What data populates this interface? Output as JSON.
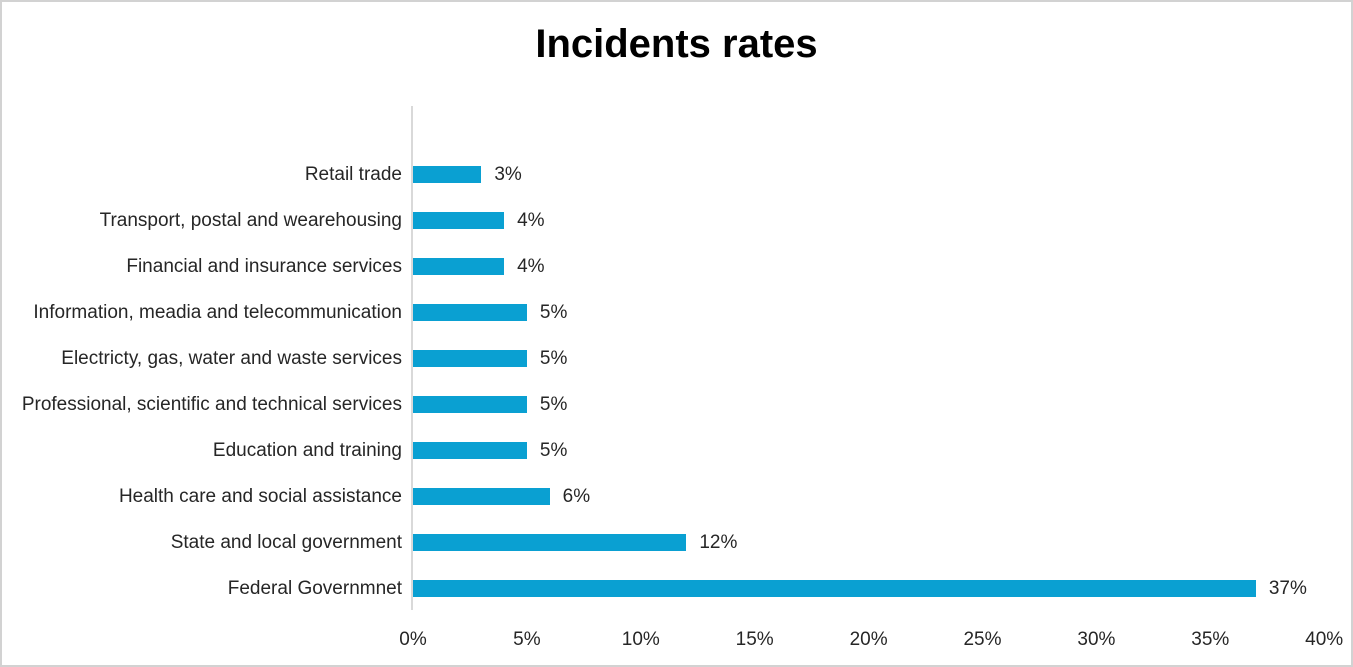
{
  "window": {
    "background": "#FFFFFF",
    "border_color": "#D2D2D2"
  },
  "chart_data": {
    "type": "bar",
    "orientation": "horizontal",
    "title": "Incidents rates",
    "categories": [
      "Retail trade",
      "Transport, postal and wearehousing",
      "Financial and insurance services",
      "Information, meadia and telecommunication",
      "Electricty, gas, water and waste services",
      "Professional, scientific and technical services",
      "Education and training",
      "Health care and social assistance",
      "State and local government",
      "Federal Governmnet"
    ],
    "values": [
      3,
      4,
      4,
      5,
      5,
      5,
      5,
      6,
      12,
      37
    ],
    "data_labels": [
      "3%",
      "4%",
      "4%",
      "5%",
      "5%",
      "5%",
      "5%",
      "6%",
      "12%",
      "37%"
    ],
    "xlim": [
      0,
      40
    ],
    "x_tick_values": [
      0,
      5,
      10,
      15,
      20,
      25,
      30,
      35,
      40
    ],
    "x_tick_labels": [
      "0%",
      "5%",
      "10%",
      "15%",
      "20%",
      "25%",
      "30%",
      "35%",
      "40%"
    ],
    "grid": false,
    "legend": false,
    "bar_color": "#0AA0D2",
    "axis_line_color": "#D9D9D9",
    "label_color": "#262626",
    "title_color": "#000000"
  }
}
